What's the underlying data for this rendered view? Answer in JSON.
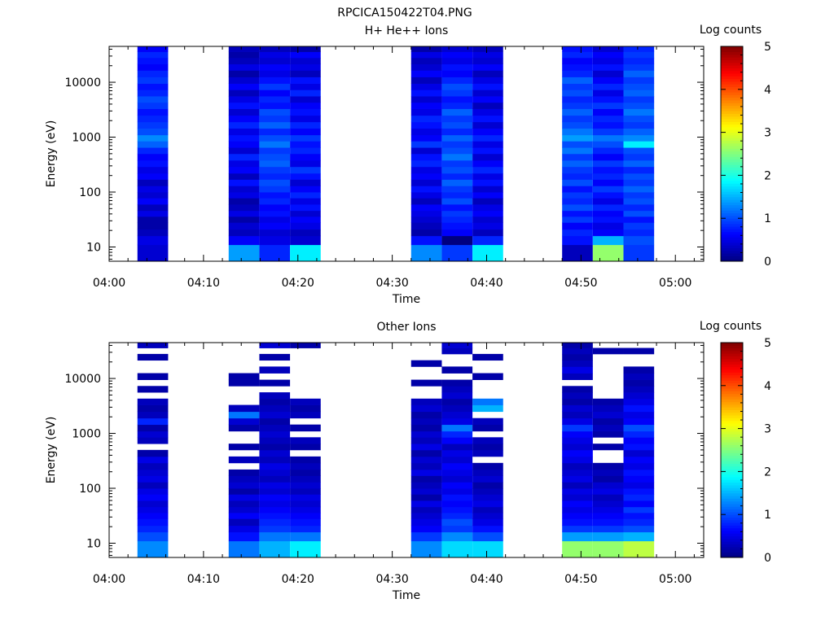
{
  "page_title": "RPCICA150422T04.PNG",
  "colorbar": {
    "label": "Log counts",
    "ticks": [
      "0",
      "1",
      "2",
      "3",
      "4",
      "5"
    ],
    "range": [
      0,
      5
    ],
    "colormap": [
      "#00007f",
      "#0000ff",
      "#0080ff",
      "#00ffff",
      "#80ff80",
      "#ffff00",
      "#ff8000",
      "#ff0000",
      "#7f0000"
    ]
  },
  "chart_data": [
    {
      "type": "heatmap",
      "title": "H+ He++ Ions",
      "xlabel": "Time",
      "ylabel": "Energy (eV)",
      "xlim": [
        "04:00",
        "05:03"
      ],
      "ylog": true,
      "ylim": [
        5.5,
        45000
      ],
      "x_ticks": [
        "04:00",
        "04:10",
        "04:20",
        "04:30",
        "04:40",
        "04:50",
        "05:00"
      ],
      "y_ticks": [
        "10",
        "100",
        "1000",
        "10000"
      ],
      "energy_edges": [
        5.5,
        11,
        16,
        21,
        28,
        36,
        46,
        60,
        78,
        100,
        130,
        170,
        220,
        290,
        380,
        500,
        650,
        850,
        1100,
        1450,
        1900,
        2500,
        3300,
        4300,
        5600,
        7300,
        9500,
        12500,
        16500,
        21500,
        28000,
        36000,
        45000
      ],
      "sweeps": [
        {
          "start": "04:03:00",
          "end": "04:06:15",
          "log_counts": [
            0.4,
            0.5,
            0.3,
            0.2,
            0.2,
            0.5,
            0.3,
            0.6,
            0.4,
            0.5,
            0.3,
            0.6,
            0.5,
            0.7,
            0.6,
            0.8,
            1.1,
            1.3,
            1.0,
            0.9,
            0.8,
            0.7,
            0.9,
            1.0,
            0.8,
            0.7,
            0.9,
            0.8,
            0.6,
            0.7,
            0.8,
            0.6
          ]
        },
        {
          "start": "04:12:40",
          "end": "04:15:55",
          "log_counts": [
            1.4,
            0.6,
            0.3,
            0.4,
            0.2,
            0.5,
            0.3,
            0.2,
            0.5,
            0.4,
            0.7,
            0.3,
            0.6,
            0.5,
            0.8,
            0.4,
            0.6,
            0.7,
            0.5,
            0.8,
            0.6,
            0.4,
            0.7,
            0.5,
            0.3,
            0.6,
            0.4,
            0.2,
            0.5,
            0.3,
            0.2,
            0.3
          ]
        },
        {
          "start": "04:15:55",
          "end": "04:19:10",
          "log_counts": [
            0.8,
            0.5,
            0.4,
            0.6,
            0.5,
            0.7,
            0.6,
            0.8,
            0.7,
            0.9,
            1.0,
            0.8,
            0.9,
            1.1,
            1.0,
            0.9,
            1.2,
            1.0,
            0.8,
            1.1,
            0.9,
            1.0,
            0.7,
            0.8,
            0.6,
            0.9,
            0.7,
            0.5,
            0.6,
            0.4,
            0.5,
            0.3
          ]
        },
        {
          "start": "04:19:10",
          "end": "04:22:25",
          "log_counts": [
            1.8,
            0.4,
            0.3,
            0.5,
            0.6,
            0.4,
            0.7,
            0.5,
            0.8,
            0.6,
            0.4,
            0.7,
            0.9,
            0.5,
            0.6,
            0.8,
            0.7,
            0.9,
            0.6,
            0.8,
            0.5,
            0.7,
            0.6,
            0.4,
            0.8,
            0.5,
            0.7,
            0.3,
            0.5,
            0.4,
            0.6,
            0.2
          ]
        },
        {
          "start": "04:32:00",
          "end": "04:35:15",
          "log_counts": [
            1.3,
            0.7,
            0.2,
            0.3,
            0.4,
            0.5,
            0.6,
            0.3,
            0.5,
            0.7,
            0.4,
            0.6,
            0.5,
            0.8,
            0.7,
            0.4,
            0.9,
            0.6,
            0.5,
            0.7,
            0.8,
            0.5,
            0.6,
            0.4,
            0.7,
            0.5,
            0.3,
            0.6,
            0.4,
            0.3,
            0.5,
            0.2
          ]
        },
        {
          "start": "04:35:15",
          "end": "04:38:30",
          "log_counts": [
            0.9,
            0.0,
            0.6,
            0.7,
            0.8,
            0.9,
            0.7,
            1.0,
            0.8,
            0.9,
            1.1,
            0.8,
            1.0,
            0.9,
            1.2,
            1.0,
            0.9,
            1.1,
            0.8,
            1.0,
            0.9,
            1.1,
            0.8,
            0.7,
            0.9,
            1.0,
            0.8,
            0.6,
            0.7,
            0.5,
            0.6,
            0.4
          ]
        },
        {
          "start": "04:38:30",
          "end": "04:41:45",
          "log_counts": [
            1.8,
            0.8,
            0.3,
            0.5,
            0.4,
            0.6,
            0.5,
            0.3,
            0.6,
            0.4,
            0.7,
            0.5,
            0.8,
            0.6,
            0.4,
            0.7,
            0.5,
            0.8,
            0.6,
            0.4,
            0.7,
            0.5,
            0.3,
            0.6,
            0.4,
            0.7,
            0.5,
            0.3,
            0.6,
            0.4,
            0.5,
            0.3
          ]
        },
        {
          "start": "04:48:00",
          "end": "04:51:15",
          "log_counts": [
            0.3,
            0.7,
            0.8,
            0.6,
            0.9,
            0.7,
            1.0,
            0.8,
            0.9,
            0.7,
            1.0,
            0.8,
            0.9,
            1.1,
            0.9,
            1.2,
            1.0,
            1.4,
            1.2,
            1.0,
            0.9,
            1.1,
            0.9,
            0.8,
            1.0,
            0.9,
            1.1,
            0.8,
            0.7,
            0.6,
            0.8,
            0.7
          ]
        },
        {
          "start": "04:51:15",
          "end": "04:54:30",
          "log_counts": [
            2.6,
            1.5,
            0.6,
            0.5,
            0.7,
            0.6,
            0.8,
            0.5,
            0.7,
            0.9,
            0.6,
            0.8,
            0.7,
            0.9,
            0.6,
            0.8,
            1.0,
            1.2,
            0.9,
            0.7,
            0.8,
            0.6,
            0.9,
            0.7,
            0.5,
            0.8,
            0.6,
            0.4,
            0.7,
            0.5,
            0.6,
            0.4
          ]
        },
        {
          "start": "04:54:30",
          "end": "04:57:45",
          "log_counts": [
            0.9,
            1.0,
            0.8,
            0.9,
            0.7,
            1.0,
            0.8,
            1.0,
            0.9,
            1.1,
            0.9,
            1.0,
            0.8,
            1.1,
            0.9,
            1.0,
            1.8,
            1.3,
            1.1,
            0.9,
            1.0,
            1.2,
            1.0,
            0.9,
            1.1,
            1.0,
            0.9,
            1.1,
            0.9,
            0.8,
            0.9,
            0.8
          ]
        }
      ]
    },
    {
      "type": "heatmap",
      "title": "Other Ions",
      "xlabel": "Time",
      "ylabel": "Energy (eV)",
      "xlim": [
        "04:00",
        "05:03"
      ],
      "ylog": true,
      "ylim": [
        5.5,
        45000
      ],
      "x_ticks": [
        "04:00",
        "04:10",
        "04:20",
        "04:30",
        "04:40",
        "04:50",
        "05:00"
      ],
      "y_ticks": [
        "10",
        "100",
        "1000",
        "10000"
      ],
      "energy_edges": [
        5.5,
        11,
        16,
        21,
        28,
        36,
        46,
        60,
        78,
        100,
        130,
        170,
        220,
        290,
        380,
        500,
        650,
        850,
        1100,
        1450,
        1900,
        2500,
        3300,
        4300,
        5600,
        7300,
        9500,
        12500,
        16500,
        21500,
        28000,
        36000,
        45000
      ],
      "sweeps": [
        {
          "start": "04:03:00",
          "end": "04:06:15",
          "log_counts": [
            1.3,
            1.0,
            0.8,
            0.7,
            0.6,
            0.5,
            0.4,
            0.6,
            0.5,
            0.3,
            0.5,
            0.4,
            0.3,
            0.5,
            0.2,
            null,
            0.3,
            0.4,
            0.2,
            0.8,
            0.3,
            0.2,
            0.3,
            null,
            0.2,
            null,
            0.2,
            null,
            null,
            0.2,
            null,
            0.3
          ]
        },
        {
          "start": "04:12:40",
          "end": "04:15:55",
          "log_counts": [
            1.2,
            0.7,
            0.5,
            0.3,
            0.6,
            0.4,
            0.3,
            0.5,
            0.2,
            0.4,
            0.3,
            0.2,
            null,
            0.3,
            null,
            0.2,
            null,
            null,
            0.2,
            0.4,
            1.2,
            0.3,
            null,
            null,
            null,
            0.2,
            0.2,
            null,
            null,
            null,
            null,
            null
          ]
        },
        {
          "start": "04:15:55",
          "end": "04:19:10",
          "log_counts": [
            1.5,
            1.2,
            0.9,
            0.8,
            0.7,
            0.6,
            0.5,
            0.6,
            0.4,
            0.5,
            0.3,
            0.4,
            0.5,
            0.3,
            0.4,
            0.2,
            0.3,
            0.4,
            0.3,
            0.2,
            0.4,
            0.3,
            0.2,
            0.3,
            null,
            0.2,
            null,
            0.3,
            null,
            0.2,
            null,
            0.4
          ]
        },
        {
          "start": "04:19:10",
          "end": "04:22:25",
          "log_counts": [
            1.8,
            1.2,
            0.8,
            0.7,
            0.6,
            0.5,
            0.4,
            0.5,
            0.3,
            0.4,
            0.3,
            0.2,
            0.3,
            0.2,
            null,
            0.2,
            0.3,
            null,
            0.2,
            null,
            0.3,
            0.2,
            0.3,
            null,
            null,
            null,
            null,
            null,
            null,
            null,
            null,
            0.2
          ]
        },
        {
          "start": "04:32:00",
          "end": "04:35:15",
          "log_counts": [
            1.3,
            0.9,
            0.6,
            0.5,
            0.4,
            0.3,
            0.5,
            0.2,
            0.4,
            0.3,
            0.2,
            0.5,
            0.3,
            0.4,
            0.2,
            0.5,
            0.3,
            0.4,
            0.2,
            0.3,
            0.2,
            0.4,
            0.3,
            null,
            null,
            0.2,
            null,
            null,
            0.2,
            null,
            null,
            null
          ]
        },
        {
          "start": "04:35:15",
          "end": "04:38:30",
          "log_counts": [
            1.7,
            1.3,
            0.9,
            1.0,
            0.8,
            0.7,
            0.6,
            0.7,
            0.5,
            0.6,
            0.4,
            0.5,
            0.6,
            0.4,
            0.5,
            0.3,
            0.6,
            0.8,
            1.2,
            0.5,
            0.4,
            0.3,
            0.2,
            0.4,
            0.3,
            0.2,
            null,
            0.2,
            null,
            null,
            0.3,
            0.4
          ]
        },
        {
          "start": "04:38:30",
          "end": "04:41:45",
          "log_counts": [
            1.7,
            1.0,
            0.7,
            0.5,
            0.4,
            0.3,
            0.5,
            0.4,
            0.3,
            0.2,
            0.4,
            0.3,
            0.2,
            null,
            0.3,
            0.2,
            0.3,
            null,
            0.2,
            0.3,
            null,
            1.5,
            1.2,
            null,
            null,
            null,
            0.2,
            null,
            null,
            0.2,
            null,
            null
          ]
        },
        {
          "start": "04:48:00",
          "end": "04:51:15",
          "log_counts": [
            2.6,
            1.4,
            0.9,
            0.7,
            0.6,
            0.5,
            0.6,
            0.4,
            0.5,
            0.3,
            0.5,
            0.4,
            0.3,
            0.5,
            0.6,
            0.4,
            0.5,
            0.6,
            0.9,
            0.5,
            0.3,
            0.4,
            0.2,
            0.3,
            0.2,
            null,
            0.3,
            0.5,
            0.3,
            0.2,
            0.3,
            0.2
          ]
        },
        {
          "start": "04:51:15",
          "end": "04:54:30",
          "log_counts": [
            2.6,
            1.4,
            0.9,
            0.7,
            0.6,
            0.5,
            0.4,
            0.3,
            0.5,
            0.4,
            0.2,
            0.3,
            0.2,
            null,
            null,
            0.2,
            null,
            0.2,
            0.3,
            0.2,
            0.4,
            0.3,
            0.2,
            null,
            null,
            null,
            null,
            null,
            null,
            null,
            0.2,
            null
          ]
        },
        {
          "start": "04:54:30",
          "end": "04:57:45",
          "log_counts": [
            2.8,
            1.5,
            1.0,
            0.8,
            0.7,
            0.9,
            0.6,
            0.8,
            0.7,
            0.5,
            0.6,
            0.7,
            0.5,
            0.6,
            0.4,
            0.7,
            0.6,
            0.8,
            1.0,
            0.6,
            0.5,
            0.7,
            0.5,
            0.4,
            0.3,
            0.2,
            0.3,
            0.2,
            null,
            null,
            0.2,
            null
          ]
        }
      ]
    }
  ]
}
